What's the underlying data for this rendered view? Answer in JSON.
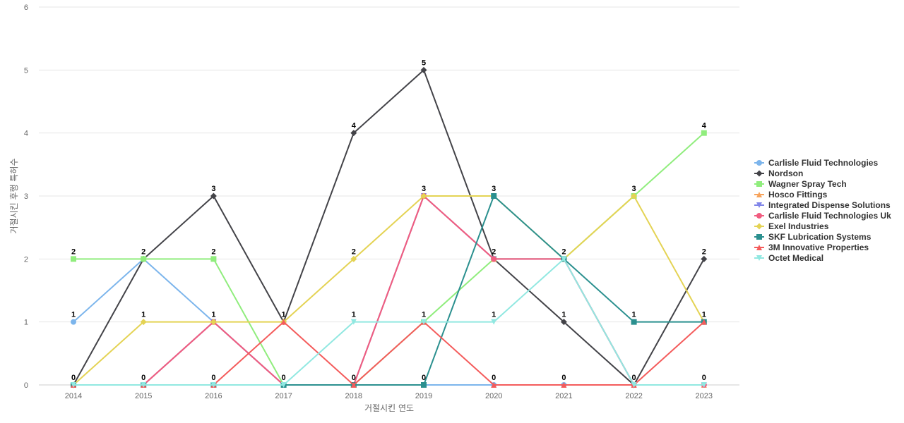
{
  "chart_data": {
    "type": "line",
    "title": "",
    "xlabel": "거절시킨 연도",
    "ylabel": "거절시킨 후행 특허수",
    "categories": [
      "2014",
      "2015",
      "2016",
      "2017",
      "2018",
      "2019",
      "2020",
      "2021",
      "2022",
      "2023"
    ],
    "ylim": [
      0,
      6
    ],
    "yticks": [
      0,
      1,
      2,
      3,
      4,
      5,
      6
    ],
    "grid": true,
    "legend_position": "right",
    "series": [
      {
        "name": "Carlisle Fluid Technologies",
        "color": "#7cb5ec",
        "marker": "circle",
        "values": [
          1,
          2,
          1,
          0,
          0,
          0,
          0,
          0,
          0,
          0
        ]
      },
      {
        "name": "Nordson",
        "color": "#434348",
        "marker": "diamond",
        "values": [
          0,
          2,
          3,
          1,
          4,
          5,
          2,
          1,
          0,
          2
        ]
      },
      {
        "name": "Wagner Spray Tech",
        "color": "#90ed7d",
        "marker": "square",
        "values": [
          2,
          2,
          2,
          0,
          0,
          1,
          2,
          2,
          3,
          4
        ]
      },
      {
        "name": "Hosco Fittings",
        "color": "#f7a35c",
        "marker": "triangle",
        "values": [
          0,
          0,
          1,
          0,
          0,
          3,
          2,
          2,
          0,
          0
        ]
      },
      {
        "name": "Integrated Dispense Solutions",
        "color": "#8085e9",
        "marker": "triangle-down",
        "values": [
          0,
          0,
          1,
          0,
          0,
          3,
          2,
          2,
          0,
          0
        ]
      },
      {
        "name": "Carlisle Fluid Technologies Uk",
        "color": "#f15c80",
        "marker": "circle",
        "values": [
          0,
          0,
          1,
          0,
          0,
          3,
          2,
          2,
          0,
          0
        ]
      },
      {
        "name": "Exel Industries",
        "color": "#e4d354",
        "marker": "diamond",
        "values": [
          0,
          1,
          1,
          1,
          2,
          3,
          3,
          2,
          3,
          1
        ]
      },
      {
        "name": "SKF Lubrication Systems",
        "color": "#2b908f",
        "marker": "square",
        "values": [
          0,
          0,
          0,
          0,
          0,
          0,
          3,
          2,
          1,
          1
        ]
      },
      {
        "name": "3M Innovative Properties",
        "color": "#f45b5b",
        "marker": "triangle",
        "values": [
          0,
          0,
          0,
          1,
          0,
          1,
          0,
          0,
          0,
          1
        ]
      },
      {
        "name": "Octet Medical",
        "color": "#91e8e1",
        "marker": "triangle-down",
        "values": [
          0,
          0,
          0,
          0,
          1,
          1,
          1,
          2,
          0,
          0
        ]
      }
    ],
    "data_labels": [
      {
        "category_index": 0,
        "value": 2
      },
      {
        "category_index": 0,
        "value": 1
      },
      {
        "category_index": 0,
        "value": 0
      },
      {
        "category_index": 1,
        "value": 2
      },
      {
        "category_index": 1,
        "value": 1
      },
      {
        "category_index": 1,
        "value": 0
      },
      {
        "category_index": 2,
        "value": 3
      },
      {
        "category_index": 2,
        "value": 2
      },
      {
        "category_index": 2,
        "value": 1
      },
      {
        "category_index": 2,
        "value": 0
      },
      {
        "category_index": 3,
        "value": 1
      },
      {
        "category_index": 3,
        "value": 0
      },
      {
        "category_index": 4,
        "value": 4
      },
      {
        "category_index": 4,
        "value": 2
      },
      {
        "category_index": 4,
        "value": 1
      },
      {
        "category_index": 4,
        "value": 0
      },
      {
        "category_index": 5,
        "value": 5
      },
      {
        "category_index": 5,
        "value": 3
      },
      {
        "category_index": 5,
        "value": 1
      },
      {
        "category_index": 5,
        "value": 0
      },
      {
        "category_index": 6,
        "value": 3
      },
      {
        "category_index": 6,
        "value": 2
      },
      {
        "category_index": 6,
        "value": 1
      },
      {
        "category_index": 6,
        "value": 0
      },
      {
        "category_index": 7,
        "value": 2
      },
      {
        "category_index": 7,
        "value": 1
      },
      {
        "category_index": 7,
        "value": 0
      },
      {
        "category_index": 8,
        "value": 3
      },
      {
        "category_index": 8,
        "value": 1
      },
      {
        "category_index": 8,
        "value": 0
      },
      {
        "category_index": 9,
        "value": 4
      },
      {
        "category_index": 9,
        "value": 2
      },
      {
        "category_index": 9,
        "value": 1
      },
      {
        "category_index": 9,
        "value": 0
      }
    ]
  }
}
